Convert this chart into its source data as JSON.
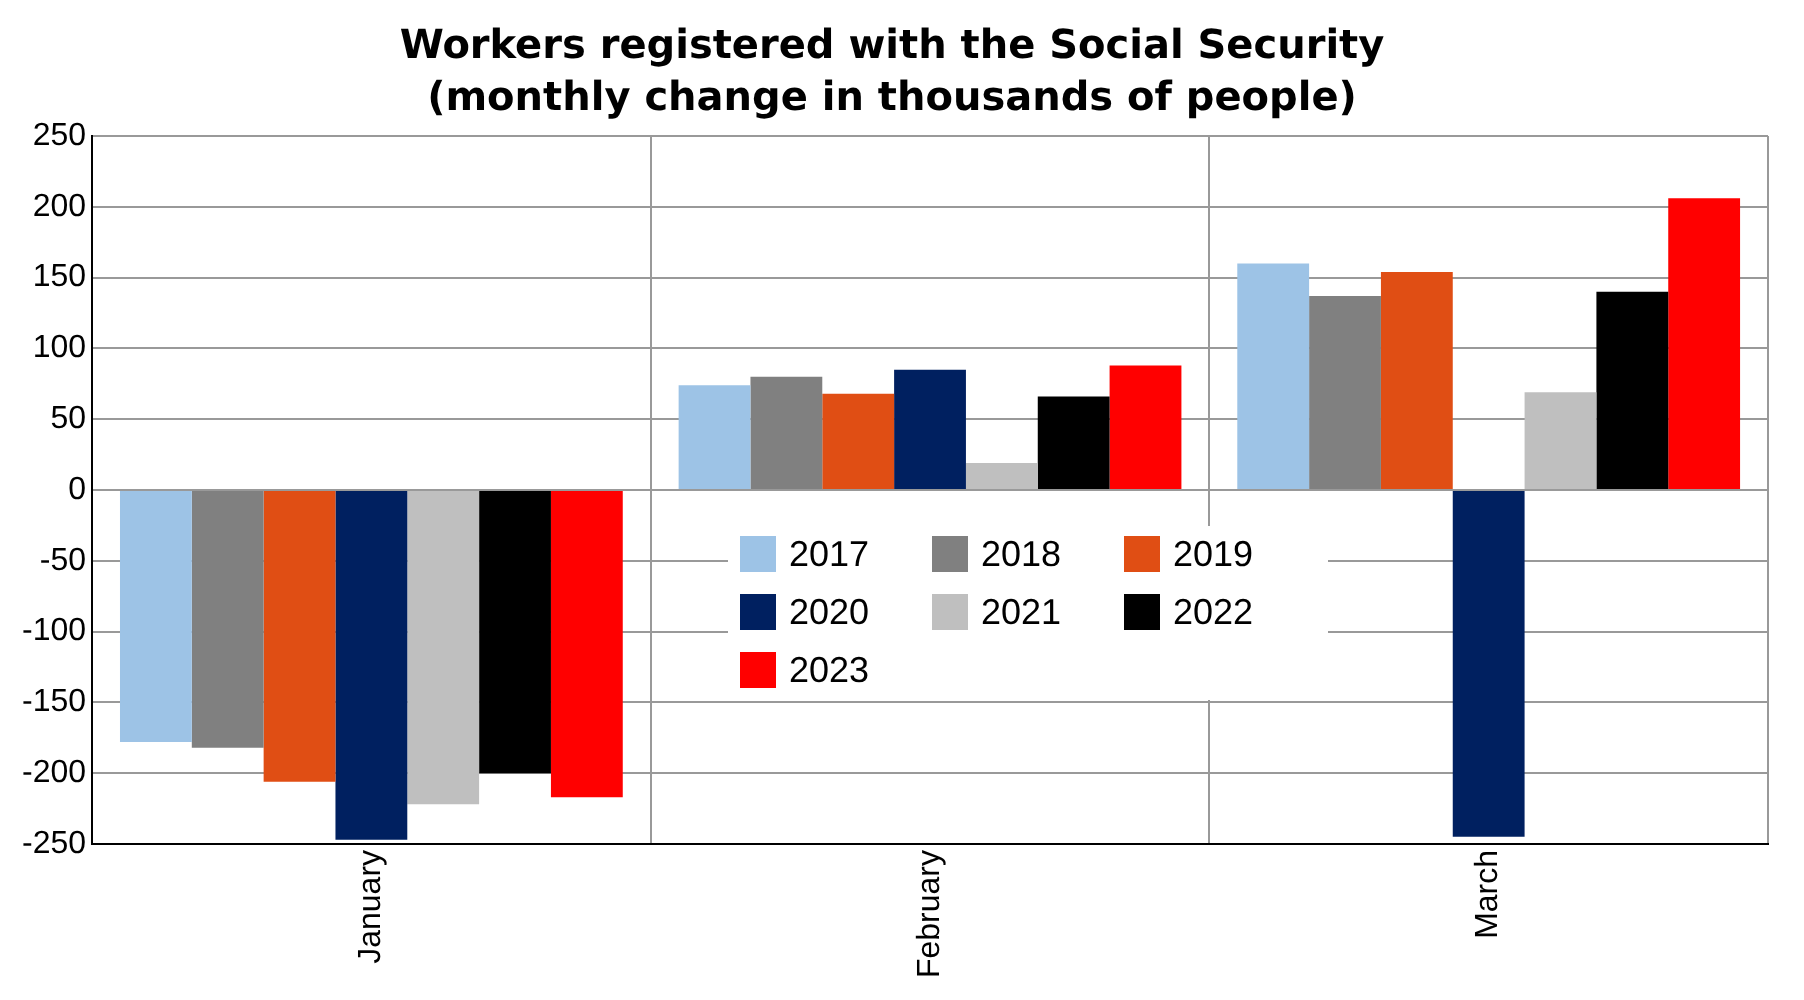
{
  "chart_data": {
    "type": "bar",
    "title": "Workers registered with the Social Security",
    "subtitle": "(monthly change in thousands of people)",
    "categories": [
      "January",
      "February",
      "March"
    ],
    "series": [
      {
        "name": "2017",
        "color": "#9dc3e6",
        "values": [
          -178,
          74,
          160
        ]
      },
      {
        "name": "2018",
        "color": "#808080",
        "values": [
          -182,
          80,
          137
        ]
      },
      {
        "name": "2019",
        "color": "#e04e14",
        "values": [
          -206,
          68,
          154
        ]
      },
      {
        "name": "2020",
        "color": "#002060",
        "values": [
          -247,
          85,
          -245
        ]
      },
      {
        "name": "2021",
        "color": "#bfbfbf",
        "values": [
          -222,
          19,
          69
        ]
      },
      {
        "name": "2022",
        "color": "#000000",
        "values": [
          -200,
          66,
          140
        ]
      },
      {
        "name": "2023",
        "color": "#ff0000",
        "values": [
          -217,
          88,
          206
        ]
      }
    ],
    "ylim": [
      -250,
      250
    ],
    "yticks": [
      -250,
      -200,
      -150,
      -100,
      -50,
      0,
      50,
      100,
      150,
      200,
      250
    ],
    "grid": true,
    "legend": "center"
  }
}
